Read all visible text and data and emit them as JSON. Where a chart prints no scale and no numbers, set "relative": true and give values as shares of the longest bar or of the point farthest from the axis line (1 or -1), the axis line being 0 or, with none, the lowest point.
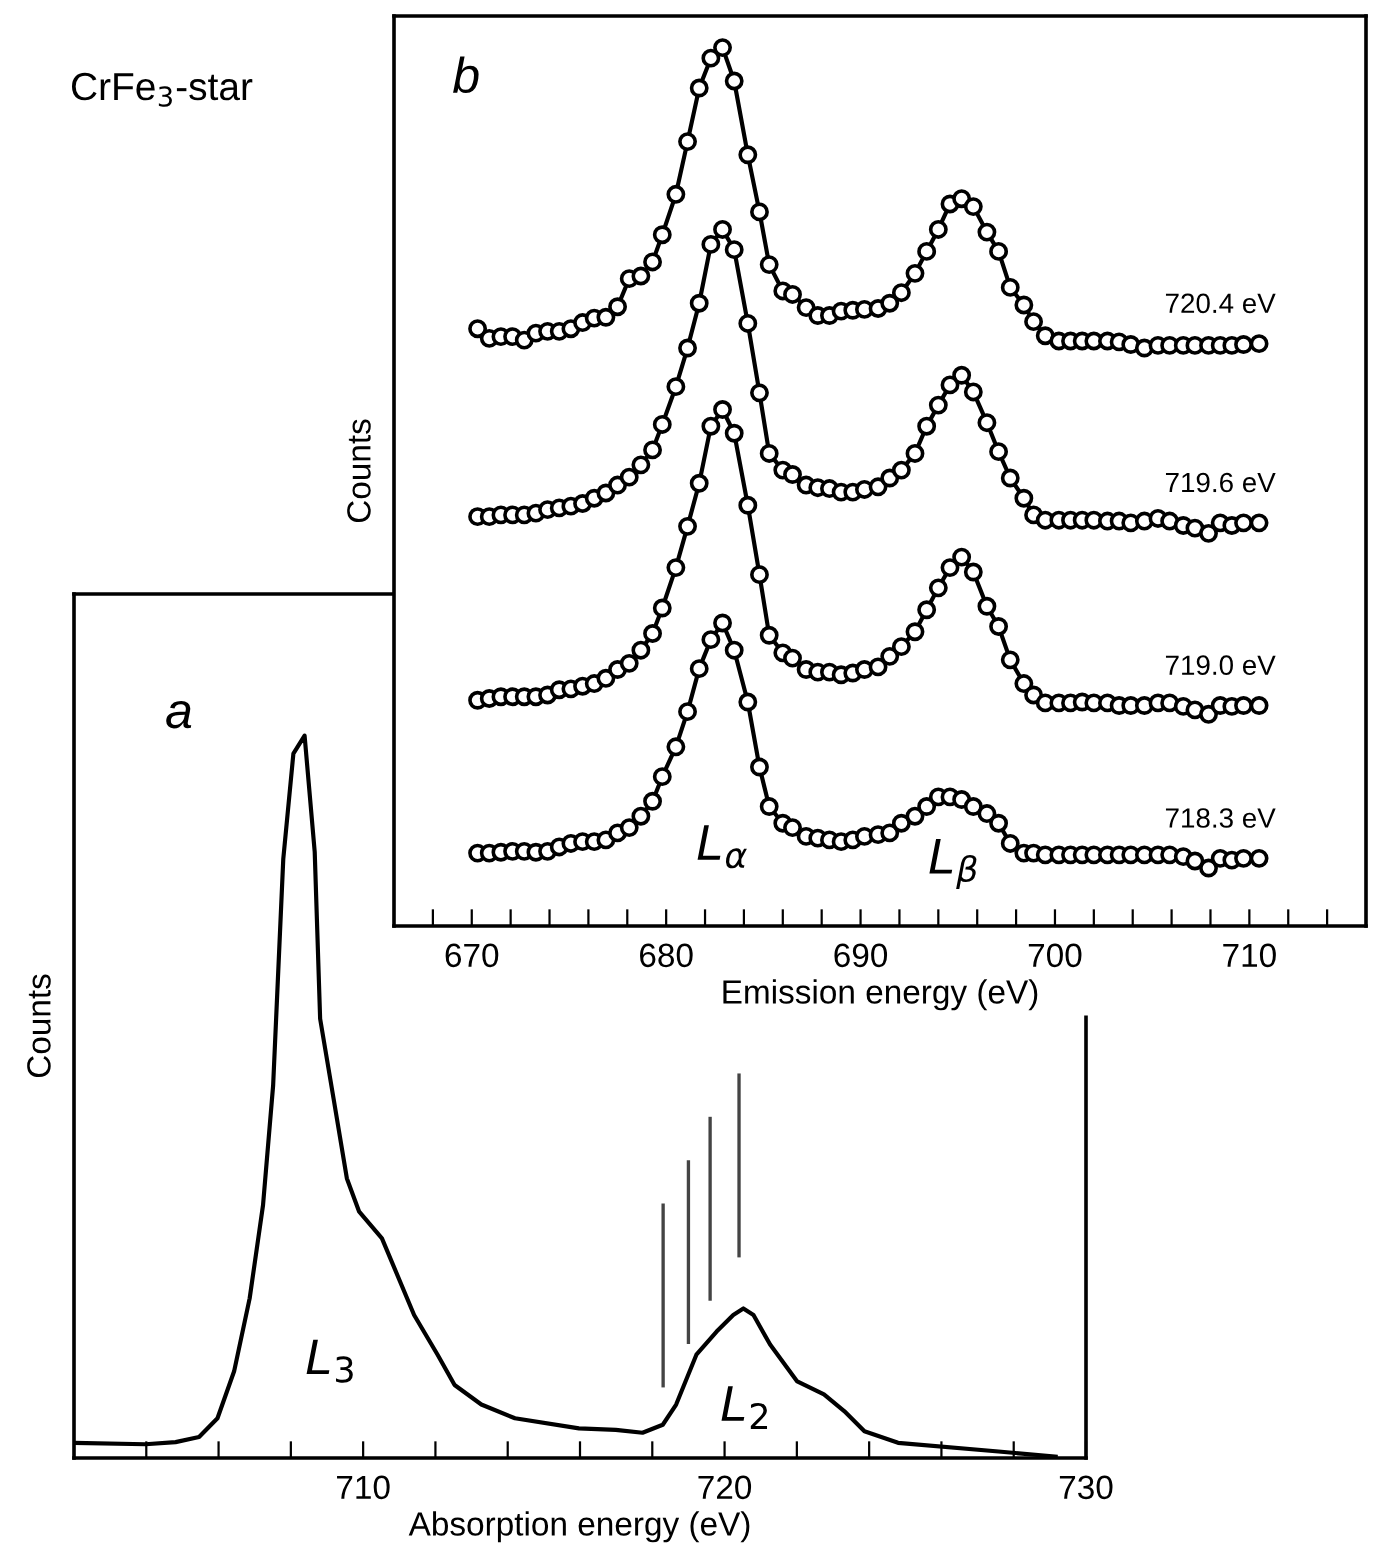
{
  "chart_data": [
    {
      "type": "line",
      "title": "CrFe$_{3}$-star",
      "xlabel": "Emission energy (eV)",
      "ylabel": "Counts",
      "relative": true,
      "marker": "circle",
      "line_style": "solid",
      "legend": false,
      "grid": false,
      "xlim": [
        666,
        716
      ],
      "xticks": [
        {
          "value": 668,
          "label": null
        },
        670,
        {
          "value": 672,
          "label": null
        },
        {
          "value": 674,
          "label": null
        },
        {
          "value": 676,
          "label": null
        },
        {
          "value": 678,
          "label": null
        },
        680,
        {
          "value": 682,
          "label": null
        },
        {
          "value": 684,
          "label": null
        },
        {
          "value": 686,
          "label": null
        },
        {
          "value": 688,
          "label": null
        },
        690,
        {
          "value": 692,
          "label": null
        },
        {
          "value": 694,
          "label": null
        },
        {
          "value": 696,
          "label": null
        },
        {
          "value": 698,
          "label": null
        },
        700,
        {
          "value": 702,
          "label": null
        },
        {
          "value": 704,
          "label": null
        },
        {
          "value": 706,
          "label": null
        },
        {
          "value": 708,
          "label": null
        },
        710,
        {
          "value": 712,
          "label": null
        },
        {
          "value": 714,
          "label": null
        }
      ],
      "x": [
        670.3,
        670.9,
        671.5,
        672.1,
        672.7,
        673.3,
        673.9,
        674.5,
        675.1,
        675.7,
        676.3,
        676.9,
        677.5,
        678.1,
        678.7,
        679.3,
        679.8,
        680.5,
        681.1,
        681.7,
        682.3,
        682.9,
        683.5,
        684.2,
        684.8,
        685.3,
        686.0,
        686.5,
        687.2,
        687.8,
        688.4,
        689.0,
        689.6,
        690.2,
        690.9,
        691.5,
        692.1,
        692.8,
        693.4,
        694.0,
        694.6,
        695.2,
        695.8,
        696.5,
        697.1,
        697.7,
        698.4,
        698.9,
        699.5,
        700.2,
        700.8,
        701.4,
        702.0,
        702.7,
        703.3,
        703.9,
        704.6,
        705.3,
        705.9,
        706.6,
        707.2,
        707.9,
        708.5,
        709.1,
        709.7,
        710.5
      ],
      "series": [
        {
          "name": "720.4 eV",
          "color": "#000000",
          "values": [
            0.68,
            0.669,
            0.671,
            0.671,
            0.667,
            0.675,
            0.677,
            0.677,
            0.68,
            0.687,
            0.692,
            0.693,
            0.705,
            0.737,
            0.74,
            0.756,
            0.787,
            0.833,
            0.893,
            0.954,
            0.988,
            1.0,
            0.962,
            0.878,
            0.813,
            0.753,
            0.723,
            0.719,
            0.704,
            0.695,
            0.695,
            0.7,
            0.701,
            0.702,
            0.703,
            0.709,
            0.721,
            0.743,
            0.768,
            0.793,
            0.822,
            0.828,
            0.819,
            0.79,
            0.768,
            0.727,
            0.707,
            0.688,
            0.672,
            0.666,
            0.666,
            0.666,
            0.666,
            0.666,
            0.665,
            0.662,
            0.658,
            0.661,
            0.661,
            0.661,
            0.661,
            0.661,
            0.661,
            0.661,
            0.662,
            0.663
          ]
        },
        {
          "name": "719.6 eV",
          "color": "#000000",
          "values": [
            0.466,
            0.466,
            0.468,
            0.468,
            0.468,
            0.47,
            0.474,
            0.476,
            0.478,
            0.481,
            0.487,
            0.493,
            0.502,
            0.511,
            0.525,
            0.542,
            0.571,
            0.614,
            0.658,
            0.709,
            0.776,
            0.793,
            0.77,
            0.686,
            0.607,
            0.538,
            0.519,
            0.514,
            0.502,
            0.499,
            0.498,
            0.494,
            0.494,
            0.497,
            0.5,
            0.51,
            0.519,
            0.538,
            0.569,
            0.593,
            0.616,
            0.627,
            0.608,
            0.573,
            0.54,
            0.51,
            0.487,
            0.468,
            0.462,
            0.462,
            0.462,
            0.462,
            0.462,
            0.461,
            0.461,
            0.459,
            0.461,
            0.464,
            0.461,
            0.456,
            0.453,
            0.447,
            0.459,
            0.456,
            0.459,
            0.459
          ]
        },
        {
          "name": "719.0 eV",
          "color": "#000000",
          "values": [
            0.257,
            0.259,
            0.261,
            0.261,
            0.261,
            0.261,
            0.263,
            0.269,
            0.27,
            0.273,
            0.276,
            0.282,
            0.292,
            0.299,
            0.314,
            0.333,
            0.362,
            0.408,
            0.455,
            0.504,
            0.569,
            0.588,
            0.561,
            0.479,
            0.4,
            0.331,
            0.311,
            0.305,
            0.292,
            0.289,
            0.289,
            0.286,
            0.288,
            0.292,
            0.295,
            0.307,
            0.318,
            0.335,
            0.36,
            0.385,
            0.408,
            0.42,
            0.403,
            0.364,
            0.341,
            0.303,
            0.276,
            0.263,
            0.254,
            0.254,
            0.254,
            0.255,
            0.254,
            0.254,
            0.251,
            0.251,
            0.251,
            0.254,
            0.254,
            0.25,
            0.246,
            0.241,
            0.251,
            0.25,
            0.251,
            0.251
          ]
        },
        {
          "name": "718.3 eV",
          "color": "#000000",
          "values": [
            0.083,
            0.083,
            0.084,
            0.085,
            0.085,
            0.084,
            0.085,
            0.09,
            0.094,
            0.096,
            0.096,
            0.098,
            0.106,
            0.112,
            0.125,
            0.142,
            0.17,
            0.204,
            0.244,
            0.293,
            0.326,
            0.345,
            0.314,
            0.255,
            0.181,
            0.136,
            0.117,
            0.112,
            0.102,
            0.1,
            0.098,
            0.096,
            0.098,
            0.102,
            0.104,
            0.106,
            0.117,
            0.125,
            0.136,
            0.147,
            0.147,
            0.144,
            0.136,
            0.128,
            0.117,
            0.094,
            0.083,
            0.083,
            0.081,
            0.081,
            0.081,
            0.081,
            0.081,
            0.081,
            0.081,
            0.081,
            0.081,
            0.081,
            0.081,
            0.079,
            0.074,
            0.066,
            0.077,
            0.075,
            0.077,
            0.077
          ]
        }
      ],
      "annotations": [
        "b",
        "L$_{α}$",
        "L$_{β}$"
      ]
    },
    {
      "type": "line",
      "xlabel": "Absorption energy (eV)",
      "ylabel": "Counts",
      "relative": true,
      "legend": false,
      "grid": false,
      "line_style": "solid",
      "xlim": [
        702,
        730
      ],
      "xticks": [
        {
          "value": 704,
          "label": null
        },
        {
          "value": 706,
          "label": null
        },
        {
          "value": 708,
          "label": null
        },
        710,
        {
          "value": 712,
          "label": null
        },
        {
          "value": 714,
          "label": null
        },
        {
          "value": 716,
          "label": null
        },
        {
          "value": 718,
          "label": null
        },
        720,
        {
          "value": 722,
          "label": null
        },
        {
          "value": 724,
          "label": null
        },
        {
          "value": 726,
          "label": null
        },
        {
          "value": 728,
          "label": null
        },
        730
      ],
      "series": [
        {
          "color": "#000000",
          "x": [
            702.0,
            703.98,
            704.81,
            705.46,
            705.97,
            706.43,
            706.86,
            707.23,
            707.51,
            707.79,
            708.07,
            708.38,
            708.66,
            708.81,
            709.18,
            709.55,
            709.89,
            710.52,
            711.41,
            712.06,
            712.53,
            713.27,
            714.2,
            715.97,
            716.99,
            717.73,
            718.29,
            718.66,
            719.22,
            719.78,
            720.24,
            720.52,
            720.8,
            721.26,
            722.01,
            722.75,
            723.31,
            723.87,
            724.8,
            727.58,
            729.16
          ],
          "values": [
            0.021,
            0.019,
            0.022,
            0.029,
            0.055,
            0.12,
            0.221,
            0.35,
            0.516,
            0.829,
            0.975,
            1.0,
            0.839,
            0.608,
            0.498,
            0.387,
            0.341,
            0.304,
            0.198,
            0.143,
            0.101,
            0.074,
            0.055,
            0.041,
            0.039,
            0.035,
            0.046,
            0.074,
            0.143,
            0.175,
            0.198,
            0.207,
            0.198,
            0.157,
            0.106,
            0.088,
            0.065,
            0.037,
            0.021,
            0.009,
            0.002
          ]
        }
      ],
      "ref_lines": [
        {
          "axis": "x",
          "value": 718.3,
          "color": "#444444"
        },
        {
          "axis": "x",
          "value": 719.0,
          "color": "#444444"
        },
        {
          "axis": "x",
          "value": 719.6,
          "color": "#444444"
        },
        {
          "axis": "x",
          "value": 720.4,
          "color": "#444444"
        }
      ],
      "annotations": [
        "a",
        "L$_{3}$",
        "L$_{2}$"
      ]
    }
  ]
}
